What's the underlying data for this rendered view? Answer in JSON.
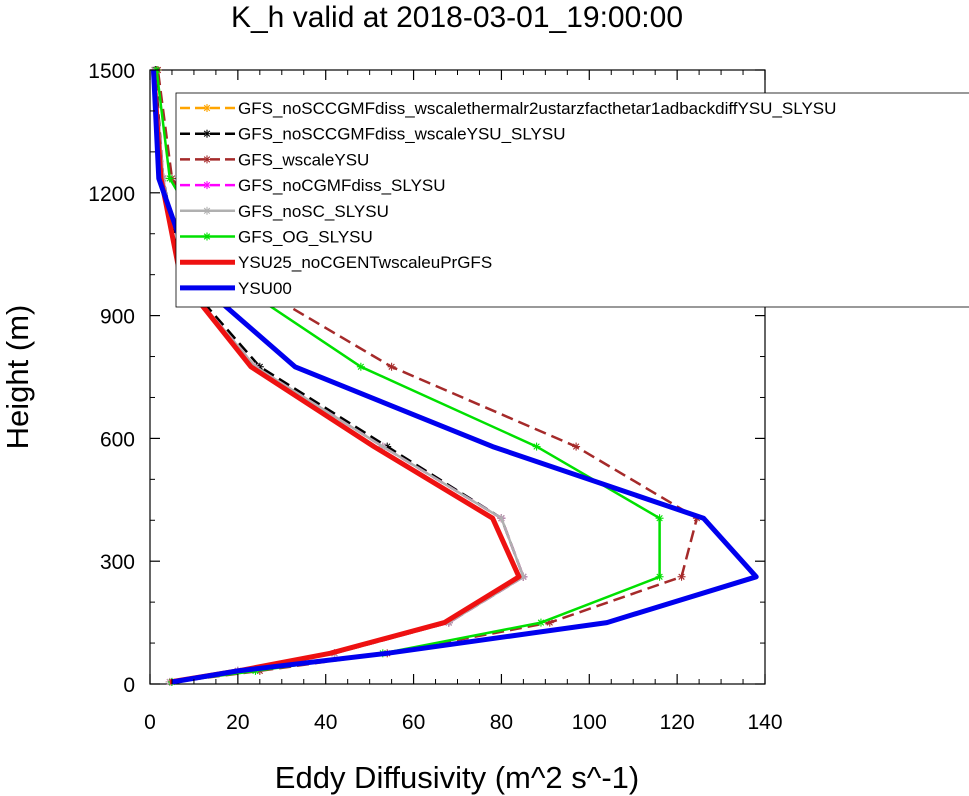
{
  "chart_data": {
    "type": "line",
    "title": "K_h valid at 2018-03-01_19:00:00",
    "xlabel": "Eddy Diffusivity (m^2 s^-1)",
    "ylabel": "Height (m)",
    "xlim": [
      0,
      140
    ],
    "ylim": [
      0,
      1500
    ],
    "xticks": [
      "0",
      "20",
      "40",
      "60",
      "80",
      "100",
      "120",
      "140"
    ],
    "yticks": [
      "0",
      "300",
      "600",
      "900",
      "1200",
      "1500"
    ],
    "grid": false,
    "legend_position": "top-right",
    "series": [
      {
        "name": "GFS_noSCCGMFdiss_wscalethermalr2ustarzfacthetar1adbackdiffYSU_SLYSU",
        "color": "#ffa500",
        "dash": "dashed",
        "marker": "asterisk",
        "width": 2.5,
        "x": [
          4.5,
          20,
          42,
          68,
          85,
          80,
          53,
          24,
          7,
          3,
          1
        ],
        "y": [
          5,
          32,
          75,
          150,
          262,
          405,
          580,
          775,
          990,
          1235,
          1500
        ]
      },
      {
        "name": "GFS_noSCCGMFdiss_wscaleYSU_SLYSU",
        "color": "#000000",
        "dash": "dashed",
        "marker": "asterisk",
        "width": 2.5,
        "x": [
          5,
          20,
          42,
          68,
          85,
          80,
          54,
          25,
          7.5,
          3,
          1.2
        ],
        "y": [
          5,
          32,
          75,
          150,
          262,
          405,
          580,
          775,
          990,
          1235,
          1500
        ]
      },
      {
        "name": "GFS_wscaleYSU",
        "color": "#a52a2a",
        "dash": "dashed",
        "marker": "asterisk",
        "width": 2.5,
        "x": [
          5,
          25,
          54,
          91,
          121,
          124.5,
          97,
          55,
          21,
          5,
          1.8
        ],
        "y": [
          5,
          32,
          75,
          150,
          262,
          405,
          580,
          775,
          990,
          1235,
          1500
        ]
      },
      {
        "name": "GFS_noCGMFdiss_SLYSU",
        "color": "#ff00ff",
        "dash": "dashed",
        "marker": "asterisk",
        "width": 2.5,
        "x": [
          4.5,
          20,
          42,
          68,
          85,
          80,
          53,
          24,
          7,
          3,
          1
        ],
        "y": [
          5,
          32,
          75,
          150,
          262,
          405,
          580,
          775,
          990,
          1235,
          1500
        ]
      },
      {
        "name": "GFS_noSC_SLYSU",
        "color": "#b0b0b0",
        "dash": "solid",
        "marker": "asterisk",
        "width": 2.5,
        "x": [
          4.5,
          20,
          42,
          68,
          85,
          80,
          53,
          24,
          7,
          3,
          1
        ],
        "y": [
          5,
          32,
          75,
          150,
          262,
          405,
          580,
          775,
          990,
          1235,
          1500
        ]
      },
      {
        "name": "GFS_OG_SLYSU",
        "color": "#00e000",
        "dash": "solid",
        "marker": "asterisk",
        "width": 2.5,
        "x": [
          5,
          24,
          53,
          89,
          116,
          116,
          88,
          48,
          18,
          4.5,
          1.5
        ],
        "y": [
          5,
          32,
          75,
          150,
          262,
          405,
          580,
          775,
          990,
          1235,
          1500
        ]
      },
      {
        "name": "YSU25_noCGENTwscaleuPrGFS",
        "color": "#ee1111",
        "dash": "solid",
        "marker": "none",
        "width": 5,
        "x": [
          4.5,
          20,
          41,
          67,
          84,
          78,
          51,
          23,
          7,
          2.5,
          0.8
        ],
        "y": [
          5,
          32,
          75,
          150,
          262,
          405,
          580,
          775,
          990,
          1235,
          1500
        ]
      },
      {
        "name": "YSU00",
        "color": "#0000ee",
        "dash": "solid",
        "marker": "none",
        "width": 5,
        "x": [
          5,
          20,
          54,
          104,
          138,
          126,
          78,
          33,
          10,
          2,
          0.8
        ],
        "y": [
          5,
          32,
          75,
          150,
          262,
          405,
          580,
          775,
          990,
          1235,
          1500
        ]
      }
    ]
  }
}
